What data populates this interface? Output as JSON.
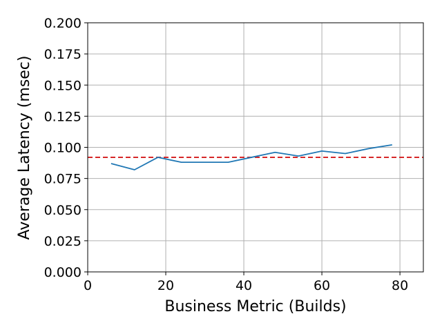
{
  "chart_data": {
    "type": "line",
    "xlabel": "Business Metric (Builds)",
    "ylabel": "Average Latency (msec)",
    "xlim": [
      0,
      86
    ],
    "ylim": [
      0,
      0.2
    ],
    "grid": true,
    "x_ticks": [
      0,
      20,
      40,
      60,
      80
    ],
    "x_tick_labels": [
      "0",
      "20",
      "40",
      "60",
      "80"
    ],
    "y_ticks": [
      0,
      0.025,
      0.05,
      0.075,
      0.1,
      0.125,
      0.15,
      0.175,
      0.2
    ],
    "y_tick_labels": [
      "0.000",
      "0.025",
      "0.050",
      "0.075",
      "0.100",
      "0.125",
      "0.150",
      "0.175",
      "0.200"
    ],
    "series": [
      {
        "x": [
          6,
          12,
          18,
          24,
          30,
          36,
          42,
          48,
          54,
          60,
          66,
          72,
          78
        ],
        "y": [
          0.087,
          0.082,
          0.092,
          0.088,
          0.088,
          0.088,
          0.092,
          0.096,
          0.093,
          0.097,
          0.095,
          0.099,
          0.102
        ],
        "color": "#1f77b4",
        "style": "solid"
      }
    ],
    "reference_lines": [
      {
        "orientation": "horizontal",
        "y": 0.092,
        "color": "#d62728",
        "style": "dashed"
      }
    ]
  }
}
